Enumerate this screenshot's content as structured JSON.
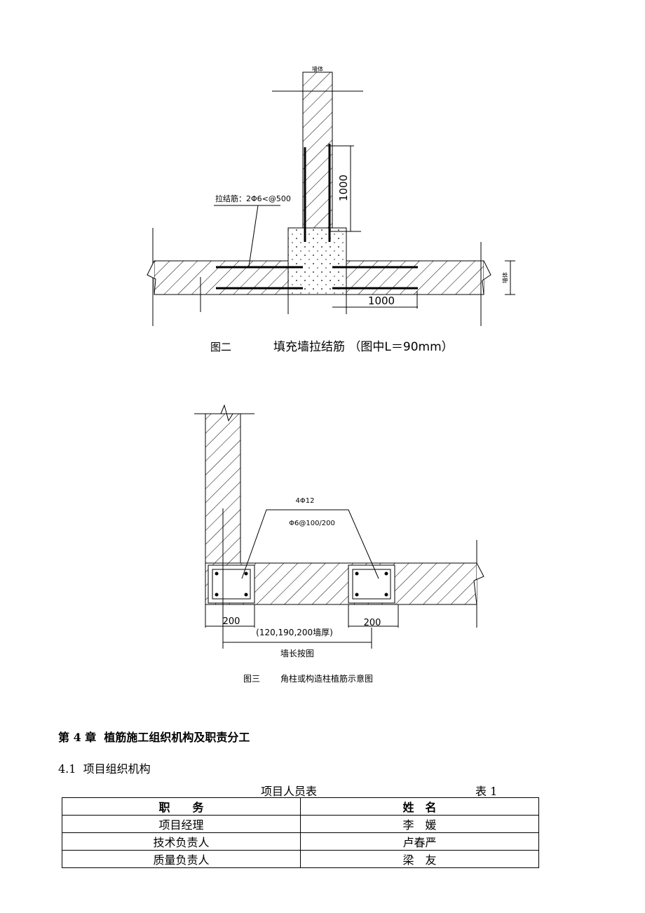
{
  "figure2": {
    "wall_label_top": "墙体",
    "tie_bar": "拉结筋：2Φ6<@500",
    "dim_vertical": "1000",
    "dim_horizontal": "1000",
    "wall_label_right": "墙体",
    "caption_number": "图二",
    "caption_title": "填充墙拉结筋 （图中L＝90mm）"
  },
  "figure3": {
    "main_bar": "4Φ12",
    "stirrup": "Φ6@100/200",
    "dim_left": "200",
    "dim_right": "200",
    "wall_thickness": "(120,190,200墙厚)",
    "wall_length": "墙长按图",
    "caption_number": "图三",
    "caption_title": "角柱或构造柱植筋示意图"
  },
  "chapter": "第 4 章  植筋施工组织机构及职责分工",
  "section": "4.1  项目组织机构",
  "table": {
    "title": "项目人员表",
    "number": "表 1",
    "header": [
      "职　　务",
      "姓　名"
    ],
    "rows": [
      [
        "项目经理",
        "李　媛"
      ],
      [
        "技术负责人",
        "卢春严"
      ],
      [
        "质量负责人",
        "梁　友"
      ]
    ]
  }
}
